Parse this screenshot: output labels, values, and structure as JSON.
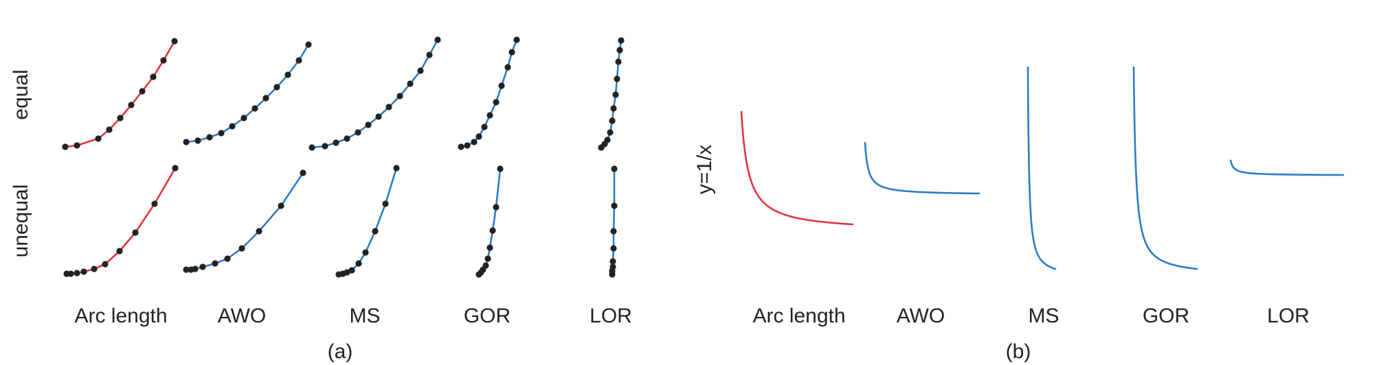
{
  "panel_a": {
    "caption": "(a)",
    "row_labels": [
      "equal",
      "unequal"
    ],
    "columns": [
      "Arc length",
      "AWO",
      "MS",
      "GOR",
      "LOR"
    ]
  },
  "panel_b": {
    "caption": "(b)",
    "y_label": "y=1/x",
    "columns": [
      "Arc length",
      "AWO",
      "MS",
      "GOR",
      "LOR"
    ]
  },
  "colors": {
    "highlight": "#e0353a",
    "curve": "#2a7cc6",
    "point": "#222222"
  }
}
